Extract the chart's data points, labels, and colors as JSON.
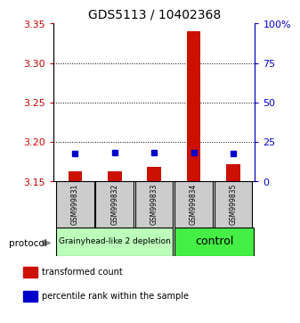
{
  "title": "GDS5113 / 10402368",
  "samples": [
    "GSM999831",
    "GSM999832",
    "GSM999833",
    "GSM999834",
    "GSM999835"
  ],
  "transformed_counts": [
    3.163,
    3.163,
    3.168,
    3.34,
    3.172
  ],
  "percentile_ranks": [
    3.185,
    3.187,
    3.187,
    3.187,
    3.185
  ],
  "baseline": 3.15,
  "ylim_left": [
    3.15,
    3.35
  ],
  "ylim_right": [
    0,
    100
  ],
  "yticks_left": [
    3.15,
    3.2,
    3.25,
    3.3,
    3.35
  ],
  "yticks_right": [
    0,
    25,
    50,
    75,
    100
  ],
  "left_axis_color": "#cc0000",
  "right_axis_color": "#0000cc",
  "bar_color": "#cc1100",
  "marker_color": "#0000cc",
  "group0_label": "Grainyhead-like 2 depletion",
  "group0_color": "#bbffbb",
  "group0_text_size": 6.5,
  "group1_label": "control",
  "group1_color": "#44ee44",
  "group1_text_size": 9,
  "protocol_label": "protocol",
  "legend": [
    {
      "color": "#cc1100",
      "label": "transformed count"
    },
    {
      "color": "#0000cc",
      "label": "percentile rank within the sample"
    }
  ],
  "background_color": "#ffffff",
  "bar_width": 0.35,
  "marker_size": 5,
  "grid_lines": [
    3.2,
    3.25,
    3.3
  ],
  "title_fontsize": 10
}
